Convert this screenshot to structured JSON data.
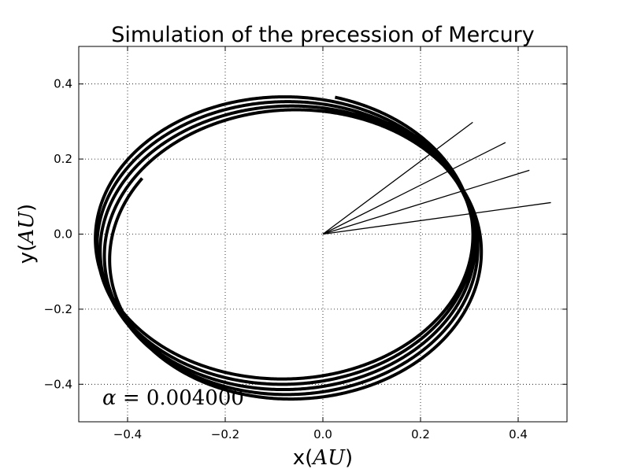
{
  "chart_data": {
    "type": "line",
    "title": "Simulation of the precession of Mercury",
    "xlabel": {
      "prefix": "x(",
      "italic": "AU",
      "suffix": ")"
    },
    "ylabel": {
      "prefix": "y(",
      "italic": "AU",
      "suffix": ")"
    },
    "xlim": [
      -0.5,
      0.5
    ],
    "ylim": [
      -0.5,
      0.5
    ],
    "x_ticks": [
      -0.4,
      -0.2,
      0.0,
      0.2,
      0.4
    ],
    "x_tick_labels": [
      "−0.4",
      "−0.2",
      "0.0",
      "0.2",
      "0.4"
    ],
    "y_ticks": [
      -0.4,
      -0.2,
      0.0,
      0.2,
      0.4
    ],
    "y_tick_labels": [
      "−0.4",
      "−0.2",
      "0.0",
      "0.2",
      "0.4"
    ],
    "grid": true,
    "grid_style": "dotted",
    "line_color": "#000000",
    "annotation": {
      "italic": "α",
      "text": " = 0.004000"
    },
    "orbit": {
      "semi_major_axis": 0.387,
      "eccentricity": 0.206,
      "initial_angle_deg": 0,
      "final_angle_deg": 48,
      "start_point": [
        0.03,
        0.44
      ]
    },
    "perihelion_rays": [
      {
        "x": [
          0.0,
          0.467
        ],
        "y": [
          0.0,
          0.084
        ]
      },
      {
        "x": [
          0.0,
          0.423
        ],
        "y": [
          0.0,
          0.17
        ]
      },
      {
        "x": [
          0.0,
          0.374
        ],
        "y": [
          0.0,
          0.244
        ]
      },
      {
        "x": [
          0.0,
          0.307
        ],
        "y": [
          0.0,
          0.298
        ]
      }
    ]
  }
}
